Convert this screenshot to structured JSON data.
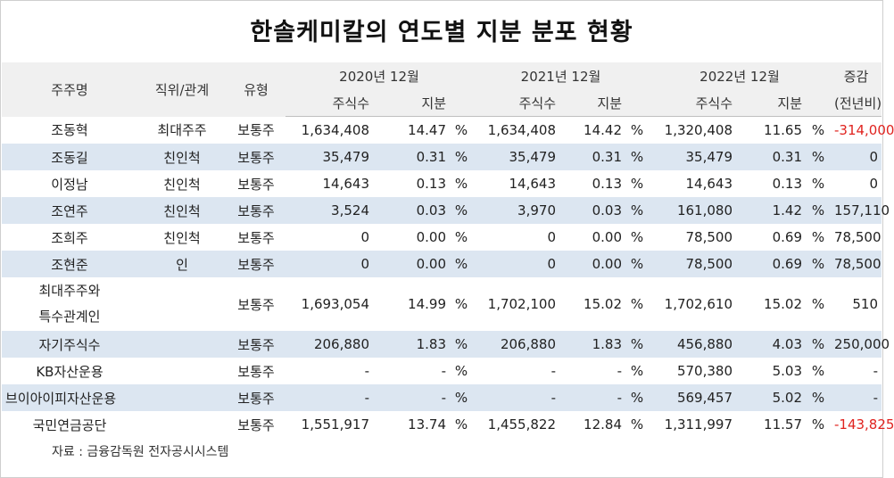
{
  "title": "한솔케미칼의 연도별 지분 분포 현황",
  "header": {
    "holder": "주주명",
    "position": "직위/관계",
    "type": "유형",
    "year2020": "2020년 12월",
    "year2021": "2021년 12월",
    "year2022": "2022년 12월",
    "shares": "주식수",
    "stake": "지분",
    "change": "증감",
    "change_sub": "(전년비)"
  },
  "rows": [
    {
      "name": "조동혁",
      "relation": "최대주주",
      "type": "보통주",
      "s2020": "1,634,408",
      "p2020": "14.47",
      "u2020": "%",
      "s2021": "1,634,408",
      "p2021": "14.42",
      "u2021": "%",
      "s2022": "1,320,408",
      "p2022": "11.65",
      "u2022": "%",
      "change": "-314,000"
    },
    {
      "name": "조동길",
      "relation": "친인척",
      "type": "보통주",
      "s2020": "35,479",
      "p2020": "0.31",
      "u2020": "%",
      "s2021": "35,479",
      "p2021": "0.31",
      "u2021": "%",
      "s2022": "35,479",
      "p2022": "0.31",
      "u2022": "%",
      "change": "0"
    },
    {
      "name": "이정남",
      "relation": "친인척",
      "type": "보통주",
      "s2020": "14,643",
      "p2020": "0.13",
      "u2020": "%",
      "s2021": "14,643",
      "p2021": "0.13",
      "u2021": "%",
      "s2022": "14,643",
      "p2022": "0.13",
      "u2022": "%",
      "change": "0"
    },
    {
      "name": "조연주",
      "relation": "친인척",
      "type": "보통주",
      "s2020": "3,524",
      "p2020": "0.03",
      "u2020": "%",
      "s2021": "3,970",
      "p2021": "0.03",
      "u2021": "%",
      "s2022": "161,080",
      "p2022": "1.42",
      "u2022": "%",
      "change": "157,110"
    },
    {
      "name": "조희주",
      "relation": "친인척",
      "type": "보통주",
      "s2020": "0",
      "p2020": "0.00",
      "u2020": "%",
      "s2021": "0",
      "p2021": "0.00",
      "u2021": "%",
      "s2022": "78,500",
      "p2022": "0.69",
      "u2022": "%",
      "change": "78,500"
    },
    {
      "name": "조현준",
      "relation": "인",
      "type": "보통주",
      "s2020": "0",
      "p2020": "0.00",
      "u2020": "%",
      "s2021": "0",
      "p2021": "0.00",
      "u2021": "%",
      "s2022": "78,500",
      "p2022": "0.69",
      "u2022": "%",
      "change": "78,500"
    },
    {
      "name_line1": "최대주주와",
      "name_line2": "특수관계인",
      "relation": "",
      "type": "보통주",
      "s2020": "1,693,054",
      "p2020": "14.99",
      "u2020": "%",
      "s2021": "1,702,100",
      "p2021": "15.02",
      "u2021": "%",
      "s2022": "1,702,610",
      "p2022": "15.02",
      "u2022": "%",
      "change": "510"
    },
    {
      "name": "자기주식수",
      "relation": "",
      "type": "보통주",
      "s2020": "206,880",
      "p2020": "1.83",
      "u2020": "%",
      "s2021": "206,880",
      "p2021": "1.83",
      "u2021": "%",
      "s2022": "456,880",
      "p2022": "4.03",
      "u2022": "%",
      "change": "250,000"
    },
    {
      "name": "KB자산운용",
      "relation": "",
      "type": "보통주",
      "s2020": "-",
      "p2020": "-",
      "u2020": "%",
      "s2021": "-",
      "p2021": "-",
      "u2021": "%",
      "s2022": "570,380",
      "p2022": "5.03",
      "u2022": "%",
      "change": "-"
    },
    {
      "name": "브이아이피자산운용",
      "relation": "",
      "type": "보통주",
      "s2020": "-",
      "p2020": "-",
      "u2020": "%",
      "s2021": "-",
      "p2021": "-",
      "u2021": "%",
      "s2022": "569,457",
      "p2022": "5.02",
      "u2022": "%",
      "change": "-"
    },
    {
      "name": "국민연금공단",
      "relation": "",
      "type": "보통주",
      "s2020": "1,551,917",
      "p2020": "13.74",
      "u2020": "%",
      "s2021": "1,455,822",
      "p2021": "12.84",
      "u2021": "%",
      "s2022": "1,311,997",
      "p2022": "11.57",
      "u2022": "%",
      "change": "-143,825"
    }
  ],
  "source": "자료 : 금융감독원 전자공시시스템",
  "colors": {
    "negative": "#e0231f",
    "stripe": "#dce6f1",
    "header_bg": "#f0f0f0"
  }
}
